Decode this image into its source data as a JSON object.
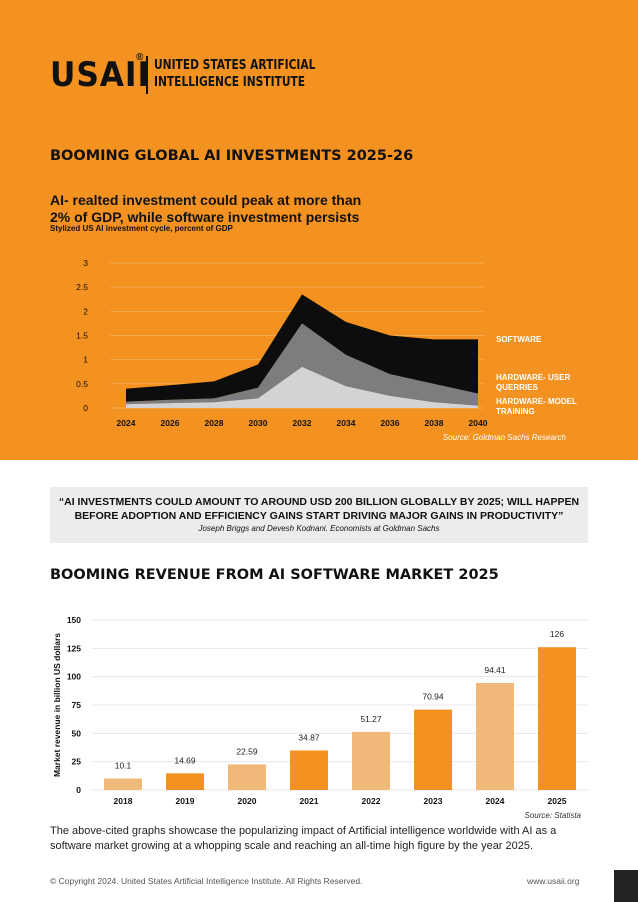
{
  "brand": {
    "mark": "USAII",
    "registered": "®",
    "name_line1": "UNITED STATES ARTIFICIAL",
    "name_line2": "INTELLIGENCE INSTITUTE"
  },
  "section1": {
    "title": "BOOMING GLOBAL AI INVESTMENTS 2025-26",
    "headline_line1": "AI- realted investment could peak at more than",
    "headline_line2": "2% of GDP, while software investment persists",
    "subtitle": "Stylized US AI investment cycle, percent of GDP"
  },
  "section2": {
    "quote": "“AI INVESTMENTS COULD AMOUNT TO AROUND USD 200 BILLION GLOBALLY BY 2025; WILL HAPPEN BEFORE ADOPTION AND EFFICIENCY GAINS START DRIVING MAJOR GAINS IN PRODUCTIVITY”",
    "quote_author": "Joseph Briggs and Devesh Kodnani. Economists at Goldman Sachs",
    "title": "BOOMING REVENUE FROM AI SOFTWARE MARKET 2025",
    "description": "The above-cited graphs showcase the popularizing impact of Artificial intelligence worldwide with AI as a software market growing at a whopping scale and reaching an all-time high figure by the year 2025."
  },
  "footer": {
    "copyright": "© Copyright 2024. United States Artificial Intelligence Institute. All Rights Reserved.",
    "website": "www.usaii.org"
  },
  "colors": {
    "orange": "#f39220",
    "bar_light": "#f0b97a",
    "bar_dark": "#f39220",
    "area_software": "#0d0d0d",
    "area_user": "#7d7d80",
    "area_training": "#d3d3d6"
  },
  "chart_data": [
    {
      "type": "area",
      "title": "AI- realted investment could peak at more than 2% of GDP, while software investment persists",
      "subtitle": "Stylized US AI investment cycle, percent of GDP",
      "x": [
        2024,
        2026,
        2028,
        2030,
        2032,
        2034,
        2036,
        2038,
        2040
      ],
      "x_ticks": [
        "2024",
        "2026",
        "2028",
        "2030",
        "2032",
        "2034",
        "2036",
        "2038",
        "2040"
      ],
      "y_ticks": [
        "0",
        "0.5",
        "1",
        "1.5",
        "2",
        "2.5",
        "3"
      ],
      "ylim": [
        0,
        3
      ],
      "stacked": true,
      "series": [
        {
          "name": "HARDWARE- MODEL TRAINING",
          "values": [
            0.08,
            0.1,
            0.12,
            0.2,
            0.85,
            0.45,
            0.25,
            0.12,
            0.05
          ]
        },
        {
          "name": "HARDWARE- USER QUERRIES",
          "values": [
            0.05,
            0.07,
            0.08,
            0.22,
            0.9,
            0.65,
            0.45,
            0.38,
            0.25
          ]
        },
        {
          "name": "SOFTWARE",
          "values": [
            0.27,
            0.3,
            0.35,
            0.48,
            0.6,
            0.68,
            0.8,
            0.92,
            1.12
          ]
        }
      ],
      "legend": [
        "SOFTWARE",
        "HARDWARE- USER QUERRIES",
        "HARDWARE- MODEL TRAINING"
      ],
      "source": "Source: Goldman Sachs Research"
    },
    {
      "type": "bar",
      "categories": [
        "2018",
        "2019",
        "2020",
        "2021",
        "2022",
        "2023",
        "2024",
        "2025"
      ],
      "values": [
        10.1,
        14.69,
        22.59,
        34.87,
        51.27,
        70.94,
        94.41,
        126
      ],
      "labels": [
        "10.1",
        "14.69",
        "22.59",
        "34.87",
        "51.27",
        "70.94",
        "94.41",
        "126"
      ],
      "highlight": [
        false,
        true,
        false,
        true,
        false,
        true,
        false,
        true
      ],
      "ylabel": "Market revenue in billion US dollars",
      "y_ticks": [
        "0",
        "25",
        "50",
        "75",
        "100",
        "125",
        "150"
      ],
      "ylim": [
        0,
        150
      ],
      "source": "Source: Statista"
    }
  ]
}
